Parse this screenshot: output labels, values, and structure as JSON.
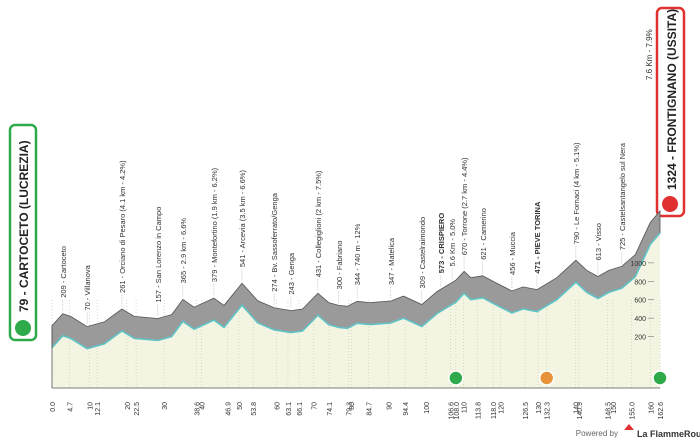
{
  "chart_data": {
    "type": "area",
    "start_label": "79 - CARTOCETO (LUCREZIA)",
    "finish_label": "1324 - FRONTIGNANO (USSITA)",
    "final_climb": "7.6 Km - 7.9%",
    "footer": {
      "prefix": "Powered by",
      "brand": "La FlammeRouge"
    },
    "x": [
      0,
      2.9,
      5,
      9.4,
      14,
      18.7,
      22,
      28.3,
      32,
      35,
      38,
      43.3,
      46,
      50.8,
      55,
      59.4,
      63.9,
      67,
      71.1,
      74,
      76.7,
      79,
      81.6,
      85,
      90.6,
      94,
      98.9,
      103,
      108,
      110.2,
      112,
      115.2,
      118,
      123,
      126,
      129.7,
      135,
      140.1,
      143,
      146,
      149,
      152.4,
      156,
      160,
      162.6
    ],
    "values": [
      79,
      209,
      180,
      70,
      120,
      261,
      180,
      157,
      200,
      365,
      280,
      379,
      300,
      541,
      350,
      274,
      243,
      260,
      431,
      330,
      300,
      290,
      344,
      330,
      347,
      400,
      309,
      450,
      573,
      670,
      600,
      621,
      560,
      456,
      500,
      471,
      600,
      790,
      680,
      613,
      680,
      725,
      850,
      1200,
      1324
    ],
    "color": "#9a9a9a",
    "xlim": [
      0,
      162.6
    ],
    "ylim": [
      0,
      1400
    ],
    "yticks": [
      200,
      400,
      600,
      800,
      1000
    ],
    "xticks": [
      {
        "value": 0,
        "label": "0.0"
      },
      4.7,
      10,
      12.1,
      20,
      22.5,
      30,
      38.6,
      40,
      46.9,
      50,
      53.8,
      60,
      63.1,
      66.1,
      70,
      74.1,
      79.3,
      80,
      84.7,
      90,
      94.4,
      100,
      106.6,
      {
        "value": 108,
        "label": "108.0"
      },
      110,
      113.8,
      {
        "value": 118,
        "label": "118.0"
      },
      120,
      126.5,
      130,
      132.3,
      140,
      140.9,
      148.5,
      150,
      {
        "value": 155,
        "label": "155.0"
      },
      160,
      162.6
    ],
    "places": [
      {
        "km": 2.9,
        "label": "209 - Cartoceto"
      },
      {
        "km": 9.4,
        "label": "70 - Villanova"
      },
      {
        "km": 18.7,
        "label": "261 - Orciano di Pesaro (4.1 km - 4.2%)"
      },
      {
        "km": 28.3,
        "label": "157 - San Lorenzo in Campo"
      },
      {
        "km": 35,
        "label": "365 - 2.9 km - 6.6%"
      },
      {
        "km": 43.3,
        "label": "379 - Montefortino (1.9 km - 6.2%)"
      },
      {
        "km": 50.8,
        "label": "541 - Arcevia (3.5 km - 6.6%)"
      },
      {
        "km": 59.4,
        "label": "274 - Bv. Sassoferrato/Genga"
      },
      {
        "km": 63.9,
        "label": "243 - Genga"
      },
      {
        "km": 71.1,
        "label": "431 - Collegiglioni (2 km - 7.5%)"
      },
      {
        "km": 76.7,
        "label": "300 - Fabriano"
      },
      {
        "km": 81.6,
        "label": "344 - 740 m - 12%"
      },
      {
        "km": 90.6,
        "label": "347 - Matelica"
      },
      {
        "km": 98.9,
        "label": "309 - Castelraimondo"
      },
      {
        "km": 104,
        "label": "573 - CRISPIERO"
      },
      {
        "km": 107,
        "label": "5.6 Km - 5.0%"
      },
      {
        "km": 110.2,
        "label": "670 - Torrone (2.7 km - 4.4%)"
      },
      {
        "km": 115.2,
        "label": "621 - Camerino"
      },
      {
        "km": 123,
        "label": "456 - Muccia"
      },
      {
        "km": 129.7,
        "label": "471 - PIEVE TORINA"
      },
      {
        "km": 140.1,
        "label": "790 - Le Fornaci (4 km - 5.1%)"
      },
      {
        "km": 146,
        "label": "613 - Visso"
      },
      {
        "km": 152.4,
        "label": "725 - Castelsantangelo sul Nera"
      }
    ]
  }
}
